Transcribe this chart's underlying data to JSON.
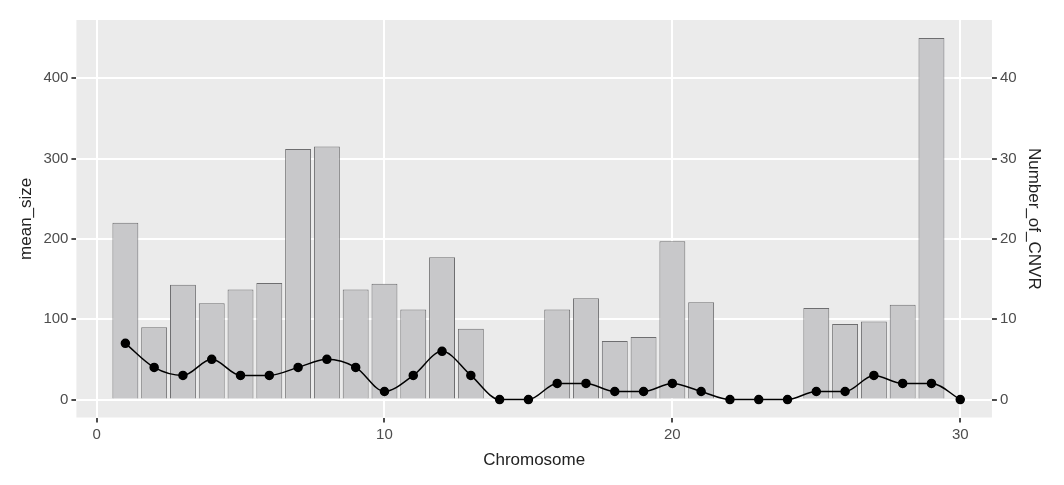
{
  "chart_data": {
    "type": "bar",
    "xlabel": "Chromosome",
    "ylabel": "mean_size",
    "y2label": "Number_of_CNVR",
    "x": [
      1,
      2,
      3,
      4,
      5,
      6,
      7,
      8,
      9,
      10,
      11,
      12,
      13,
      14,
      15,
      16,
      17,
      18,
      19,
      20,
      21,
      22,
      23,
      24,
      25,
      26,
      27,
      28,
      29,
      30
    ],
    "series": [
      {
        "color": "#c8c8ca",
        "values": [
          220,
          90,
          143,
          120,
          137,
          145,
          312,
          315,
          137,
          144,
          112,
          177,
          88,
          0,
          0,
          112,
          126,
          73,
          78,
          197,
          121,
          0,
          0,
          0,
          114,
          94,
          97,
          118,
          450,
          0
        ]
      },
      {
        "type": "line",
        "axis": "y2",
        "color": "#000000",
        "marker": "circle",
        "values": [
          7,
          4,
          3,
          5,
          3,
          3,
          4,
          5,
          4,
          1,
          3,
          6,
          3,
          0,
          0,
          2,
          2,
          1,
          1,
          2,
          1,
          0,
          0,
          0,
          1,
          1,
          3,
          2,
          2,
          0
        ]
      }
    ],
    "xlim": [
      -0.7,
      31.1
    ],
    "xticks": [
      0,
      10,
      20,
      30
    ],
    "ylim": [
      -22.5,
      472.5
    ],
    "yticks": [
      0,
      100,
      200,
      300,
      400
    ],
    "y2lim": [
      -2.25,
      47.25
    ],
    "y2ticks": [
      0,
      10,
      20,
      30,
      40
    ],
    "grid": true,
    "legend": false
  }
}
